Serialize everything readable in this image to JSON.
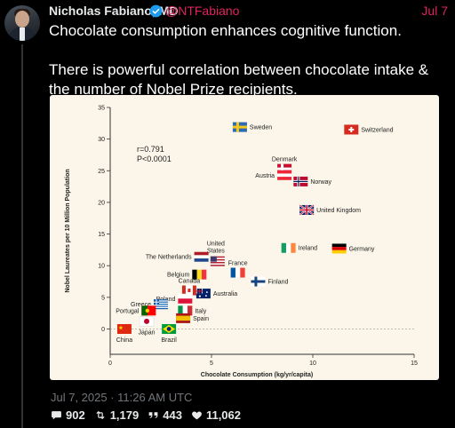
{
  "author": {
    "name": "Nicholas Fabiano, MD",
    "handle": "@NTFabiano",
    "date": "Jul 7"
  },
  "tweet": {
    "line1": "Chocolate consumption enhances cognitive function.",
    "line2": "There is powerful correlation between chocolate intake & the number of Nobel Prize recipients.",
    "timestamp": "Jul 7, 2025 · 11:26 AM UTC"
  },
  "metrics": {
    "replies": "902",
    "retweets": "1,179",
    "quotes": "443",
    "likes": "11,062"
  },
  "colors": {
    "accent": "#e0245e",
    "verified": "#1d9bf0"
  },
  "chart_data": {
    "type": "scatter",
    "xlabel": "Chocolate Consumption (kg/yr/capita)",
    "ylabel": "Nobel Laureates per 10 Million Population",
    "xlim": [
      0,
      15
    ],
    "ylim": [
      -4,
      35
    ],
    "xticks": [
      0,
      5,
      10,
      15
    ],
    "yticks": [
      0,
      5,
      10,
      15,
      20,
      25,
      30,
      35
    ],
    "grid": false,
    "annotation": [
      "r=0.791",
      "P<0.0001"
    ],
    "points": [
      {
        "label": "Switzerland",
        "x": 11.9,
        "y": 31.5,
        "label_pos": "right"
      },
      {
        "label": "Sweden",
        "x": 6.4,
        "y": 31.9,
        "label_pos": "right"
      },
      {
        "label": "Denmark",
        "x": 8.6,
        "y": 25.3,
        "label_pos": "above"
      },
      {
        "label": "Austria",
        "x": 8.6,
        "y": 24.3,
        "label_pos": "left"
      },
      {
        "label": "Norway",
        "x": 9.4,
        "y": 23.3,
        "label_pos": "right"
      },
      {
        "label": "United Kingdom",
        "x": 9.7,
        "y": 18.8,
        "label_pos": "right"
      },
      {
        "label": "Ireland",
        "x": 8.8,
        "y": 12.8,
        "label_pos": "right"
      },
      {
        "label": "Germany",
        "x": 11.3,
        "y": 12.7,
        "label_pos": "right"
      },
      {
        "label": "United States",
        "x": 5.3,
        "y": 10.7,
        "label_pos": "above"
      },
      {
        "label": "The Netherlands",
        "x": 4.5,
        "y": 11.4,
        "label_pos": "left"
      },
      {
        "label": "France",
        "x": 6.3,
        "y": 8.9,
        "label_pos": "above"
      },
      {
        "label": "Finland",
        "x": 7.3,
        "y": 7.5,
        "label_pos": "right"
      },
      {
        "label": "Belgium",
        "x": 4.4,
        "y": 8.6,
        "label_pos": "left"
      },
      {
        "label": "Canada",
        "x": 3.9,
        "y": 6.1,
        "label_pos": "above"
      },
      {
        "label": "Australia",
        "x": 4.6,
        "y": 5.6,
        "label_pos": "right"
      },
      {
        "label": "Poland",
        "x": 3.7,
        "y": 4.8,
        "label_pos": "left"
      },
      {
        "label": "Greece",
        "x": 2.5,
        "y": 3.9,
        "label_pos": "left"
      },
      {
        "label": "Portugal",
        "x": 1.9,
        "y": 2.9,
        "label_pos": "left"
      },
      {
        "label": "Italy",
        "x": 3.7,
        "y": 2.9,
        "label_pos": "right"
      },
      {
        "label": "Spain",
        "x": 3.6,
        "y": 1.7,
        "label_pos": "right"
      },
      {
        "label": "Japan",
        "x": 1.8,
        "y": 1.2,
        "label_pos": "below"
      },
      {
        "label": "China",
        "x": 0.7,
        "y": 0.0,
        "label_pos": "below"
      },
      {
        "label": "Brazil",
        "x": 2.9,
        "y": 0.0,
        "label_pos": "below"
      }
    ]
  }
}
